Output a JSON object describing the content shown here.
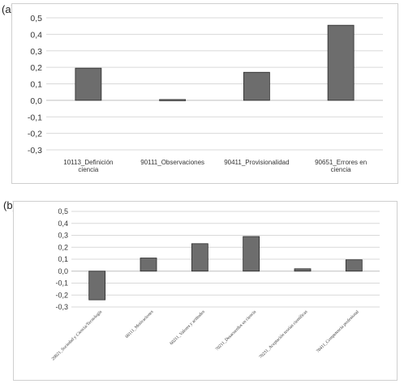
{
  "panels": {
    "a_label": "(a)",
    "b_label": "(b)"
  },
  "colors": {
    "bar": "#6d6d6d",
    "bar_stroke": "#2b2b2b",
    "grid": "#d9d9d9",
    "axis": "#bfbfbf"
  },
  "chart_data": [
    {
      "type": "bar",
      "title": "",
      "xlabel": "",
      "ylabel": "",
      "ylim": [
        -0.3,
        0.5
      ],
      "yticks": [
        "0,5",
        "0,4",
        "0,3",
        "0,2",
        "0,1",
        "0,0",
        "-0,1",
        "-0,2",
        "-0,3"
      ],
      "ytick_values": [
        0.5,
        0.4,
        0.3,
        0.2,
        0.1,
        0.0,
        -0.1,
        -0.2,
        -0.3
      ],
      "grid": true,
      "categories": [
        [
          "10113_Definición",
          "ciencia"
        ],
        [
          "90111_Observaciones"
        ],
        [
          "90411_Provisionalidad"
        ],
        [
          "90651_Errores en",
          "ciencia"
        ]
      ],
      "values": [
        0.195,
        0.005,
        0.17,
        0.455
      ]
    },
    {
      "type": "bar",
      "title": "",
      "xlabel": "",
      "ylabel": "",
      "ylim": [
        -0.3,
        0.5
      ],
      "yticks": [
        "0,5",
        "0,4",
        "0,3",
        "0,2",
        "0,1",
        "0,0",
        "-0,1",
        "-0,2",
        "-0,3"
      ],
      "ytick_values": [
        0.5,
        0.4,
        0.3,
        0.2,
        0.1,
        0.0,
        -0.1,
        -0.2,
        -0.3
      ],
      "grid": true,
      "categories": [
        "20821_Sociedad y Ciencia/Tecnología",
        "60111_Motivaciones",
        "60211_Valores y actitudes",
        "70211_Desacuerdos en ciencia",
        "70231_Aceptación teorías científicas",
        "70411_Competencia profesional"
      ],
      "values": [
        -0.24,
        0.11,
        0.23,
        0.29,
        0.02,
        0.095
      ]
    }
  ]
}
